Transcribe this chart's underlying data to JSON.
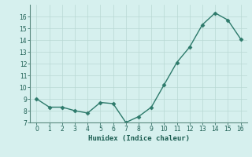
{
  "x": [
    0,
    1,
    2,
    3,
    4,
    5,
    6,
    7,
    8,
    9,
    10,
    11,
    12,
    13,
    14,
    15,
    16
  ],
  "y": [
    9.0,
    8.3,
    8.3,
    8.0,
    7.8,
    8.7,
    8.6,
    7.0,
    7.5,
    8.3,
    10.2,
    12.1,
    13.4,
    15.3,
    16.3,
    15.7,
    14.1
  ],
  "xlabel": "Humidex (Indice chaleur)",
  "ylim": [
    7,
    17
  ],
  "xlim": [
    -0.5,
    16.5
  ],
  "yticks": [
    7,
    8,
    9,
    10,
    11,
    12,
    13,
    14,
    15,
    16
  ],
  "xticks": [
    0,
    1,
    2,
    3,
    4,
    5,
    6,
    7,
    8,
    9,
    10,
    11,
    12,
    13,
    14,
    15,
    16
  ],
  "line_color": "#2d7a6b",
  "marker_color": "#2d7a6b",
  "bg_color": "#d6f0ee",
  "grid_color": "#b8d8d4",
  "font_color": "#1a5c50",
  "xlabel_color": "#1a5c50"
}
